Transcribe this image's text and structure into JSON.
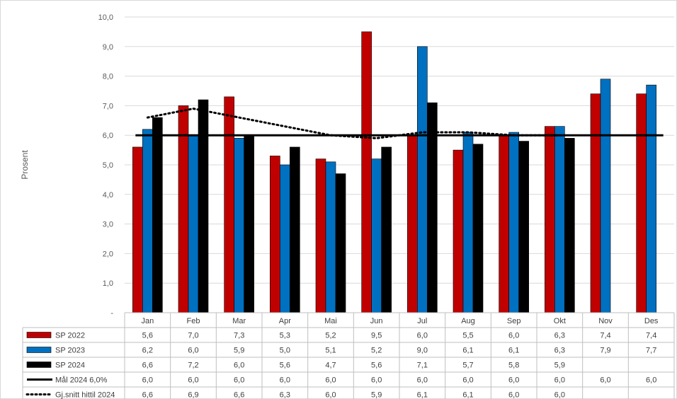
{
  "chart_data": {
    "type": "bar",
    "ylabel": "Prosent",
    "ylim": [
      0,
      10
    ],
    "yticks": [
      "-",
      "1,0",
      "2,0",
      "3,0",
      "4,0",
      "5,0",
      "6,0",
      "7,0",
      "8,0",
      "9,0",
      "10,0"
    ],
    "categories": [
      "Jan",
      "Feb",
      "Mar",
      "Apr",
      "Mai",
      "Jun",
      "Jul",
      "Aug",
      "Sep",
      "Okt",
      "Nov",
      "Des"
    ],
    "grid": true,
    "legend_placement": "data-table",
    "series": [
      {
        "name": "SP 2022",
        "kind": "bar",
        "color": "#c00000",
        "values": [
          5.6,
          7.0,
          7.3,
          5.3,
          5.2,
          9.5,
          6.0,
          5.5,
          6.0,
          6.3,
          7.4,
          7.4
        ],
        "labels": [
          "5,6",
          "7,0",
          "7,3",
          "5,3",
          "5,2",
          "9,5",
          "6,0",
          "5,5",
          "6,0",
          "6,3",
          "7,4",
          "7,4"
        ]
      },
      {
        "name": "SP 2023",
        "kind": "bar",
        "color": "#0070c0",
        "values": [
          6.2,
          6.0,
          5.9,
          5.0,
          5.1,
          5.2,
          9.0,
          6.1,
          6.1,
          6.3,
          7.9,
          7.7
        ],
        "labels": [
          "6,2",
          "6,0",
          "5,9",
          "5,0",
          "5,1",
          "5,2",
          "9,0",
          "6,1",
          "6,1",
          "6,3",
          "7,9",
          "7,7"
        ]
      },
      {
        "name": "SP 2024",
        "kind": "bar",
        "color": "#000000",
        "values": [
          6.6,
          7.2,
          6.0,
          5.6,
          4.7,
          5.6,
          7.1,
          5.7,
          5.8,
          5.9,
          null,
          null
        ],
        "labels": [
          "6,6",
          "7,2",
          "6,0",
          "5,6",
          "4,7",
          "5,6",
          "7,1",
          "5,7",
          "5,8",
          "5,9",
          "",
          ""
        ]
      },
      {
        "name": "Mål 2024 6,0%",
        "kind": "line",
        "style": "solid",
        "color": "#000000",
        "values": [
          6.0,
          6.0,
          6.0,
          6.0,
          6.0,
          6.0,
          6.0,
          6.0,
          6.0,
          6.0,
          6.0,
          6.0
        ],
        "labels": [
          "6,0",
          "6,0",
          "6,0",
          "6,0",
          "6,0",
          "6,0",
          "6,0",
          "6,0",
          "6,0",
          "6,0",
          "6,0",
          "6,0"
        ]
      },
      {
        "name": "Gj.snitt hittil 2024",
        "kind": "line",
        "style": "dotted",
        "color": "#000000",
        "values": [
          6.6,
          6.9,
          6.6,
          6.3,
          6.0,
          5.9,
          6.1,
          6.1,
          6.0,
          6.0,
          null,
          null
        ],
        "labels": [
          "6,6",
          "6,9",
          "6,6",
          "6,3",
          "6,0",
          "5,9",
          "6,1",
          "6,1",
          "6,0",
          "6,0",
          "",
          ""
        ]
      }
    ]
  }
}
